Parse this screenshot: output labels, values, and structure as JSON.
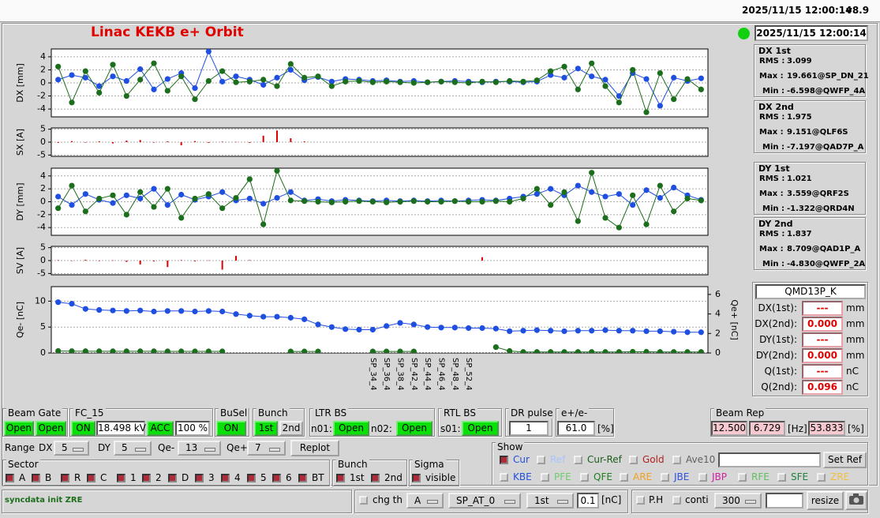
{
  "header": {
    "datetime": "2025/11/15 12:00:14",
    "version": "v8.9"
  },
  "title": "Linac KEKB e+ Orbit",
  "timestamp": "2025/11/15 12:00:14",
  "chart_data": [
    {
      "type": "line",
      "ylabel": "DX [mm]",
      "ylim": [
        -5.2,
        5.2
      ],
      "yticks": [
        4,
        2,
        0,
        -2,
        -4
      ],
      "grid": true,
      "series": [
        {
          "color": "#1f4fe0",
          "values": [
            0.5,
            1.2,
            0.8,
            -0.5,
            1.0,
            0.3,
            2.1,
            -1.0,
            0.6,
            1.5,
            -0.8,
            4.8,
            0.2,
            1.0,
            0.5,
            -0.3,
            0.8,
            2.0,
            0.4,
            0.9,
            0.2,
            0.6,
            0.5,
            0.3,
            0.4,
            0.2,
            0.3,
            0.1,
            0.2,
            0.3,
            0.2,
            0.1,
            0.2,
            0.2,
            0.1,
            0.2,
            1.2,
            0.8,
            2.2,
            1.0,
            0.5,
            -2.0,
            1.5,
            0.6,
            -3.5,
            0.8,
            0.3,
            0.7
          ]
        },
        {
          "color": "#1b6e1b",
          "values": [
            2.5,
            -3.0,
            1.8,
            -1.5,
            2.8,
            -2.0,
            0.5,
            3.0,
            -1.2,
            1.0,
            -2.5,
            0.3,
            1.8,
            0.1,
            0.2,
            0.5,
            -0.5,
            2.9,
            0.8,
            1.0,
            -0.5,
            0.2,
            0.3,
            0.1,
            0.2,
            0.1,
            0,
            0.1,
            0.2,
            0.1,
            0,
            0.2,
            0.1,
            0.3,
            0.2,
            0.4,
            1.8,
            2.5,
            -1.0,
            3.0,
            -0.5,
            -3.0,
            2.0,
            -4.5,
            1.5,
            -2.5,
            0.6,
            -1.0
          ]
        }
      ]
    },
    {
      "type": "bar",
      "ylabel": "SX [A]",
      "ylim": [
        -5.5,
        5.5
      ],
      "yticks": [
        5,
        0,
        -5
      ],
      "grid": true,
      "series": [
        {
          "color": "#e00000",
          "values": [
            -0.3,
            0.4,
            -0.2,
            0.3,
            -0.5,
            0.6,
            0.8,
            -0.2,
            0.3,
            -1.2,
            0.4,
            -0.3,
            0.2,
            0.1,
            -0.3,
            2.5,
            4.5,
            1.5,
            0.3,
            null,
            null,
            null,
            null,
            null,
            null,
            null,
            null,
            null,
            null,
            null,
            null,
            null,
            null,
            null,
            null,
            null,
            null,
            null,
            null,
            null,
            null,
            null,
            null,
            null,
            null,
            null,
            null,
            null
          ]
        }
      ]
    },
    {
      "type": "line",
      "ylabel": "DY [mm]",
      "ylim": [
        -5.2,
        5.2
      ],
      "yticks": [
        4,
        2,
        0,
        -2,
        -4
      ],
      "grid": true,
      "series": [
        {
          "color": "#1f4fe0",
          "values": [
            0.8,
            -0.5,
            1.2,
            0.3,
            -0.2,
            1.0,
            0.5,
            2.0,
            -0.5,
            1.1,
            0.3,
            0.8,
            1.5,
            0.2,
            0.5,
            -0.3,
            0.6,
            1.5,
            0.2,
            0.4,
            0.1,
            0.3,
            0.2,
            0.1,
            0.2,
            0.1,
            0.2,
            0.1,
            0.2,
            0.1,
            0.2,
            0.3,
            0.2,
            0.5,
            0.8,
            1.2,
            2.0,
            1.0,
            2.5,
            1.5,
            0.8,
            1.2,
            -0.5,
            1.8,
            0.6,
            2.2,
            1.0,
            0.3
          ]
        },
        {
          "color": "#1b6e1b",
          "values": [
            -1.0,
            2.5,
            -1.5,
            0.5,
            1.0,
            -2.0,
            1.5,
            -0.8,
            2.0,
            -2.5,
            0.5,
            1.2,
            -1.0,
            0.6,
            3.5,
            -3.5,
            4.8,
            0.2,
            0.1,
            0,
            -0.1,
            0,
            0.1,
            0,
            -0.1,
            0,
            0.1,
            0,
            0,
            0.1,
            0,
            0,
            0.1,
            0,
            0.5,
            2.0,
            -0.5,
            1.5,
            -3.0,
            4.5,
            -2.5,
            -4.0,
            1.0,
            -3.5,
            2.5,
            -1.5,
            0.5,
            0.2
          ]
        }
      ]
    },
    {
      "type": "bar",
      "ylabel": "SV [A]",
      "ylim": [
        -5.5,
        5.5
      ],
      "yticks": [
        5,
        0,
        -5
      ],
      "grid": true,
      "series": [
        {
          "color": "#e00000",
          "values": [
            0.2,
            -0.1,
            0.3,
            -0.2,
            0.1,
            -0.5,
            -1.5,
            -0.3,
            -2.5,
            0.2,
            -0.3,
            0.1,
            -3.5,
            1.8,
            0.2,
            null,
            null,
            null,
            null,
            null,
            null,
            null,
            null,
            null,
            null,
            null,
            null,
            null,
            null,
            null,
            null,
            1.3,
            null,
            null,
            null,
            null,
            null,
            null,
            null,
            null,
            null,
            null,
            null,
            null,
            null,
            null,
            null,
            null
          ]
        }
      ]
    },
    {
      "type": "line",
      "ylabel": "Qe- [nC]",
      "y2label": "Qe+ [nC]",
      "ylim": [
        0,
        12.8
      ],
      "yticks": [
        0,
        5,
        10
      ],
      "y2lim": [
        0,
        6.8
      ],
      "y2ticks": [
        0,
        2,
        4,
        6
      ],
      "grid": true,
      "categories": [
        null,
        null,
        null,
        null,
        null,
        null,
        null,
        null,
        null,
        null,
        null,
        null,
        null,
        null,
        null,
        null,
        null,
        null,
        null,
        null,
        null,
        null,
        null,
        "SP_34_4",
        "SP_36_4",
        "SP_38_4",
        "SP_42_4",
        "SP_44_4",
        "SP_46_4",
        "SP_48_4",
        "SP_52_4",
        null,
        null,
        null,
        null,
        null,
        null,
        null,
        null,
        null,
        null,
        null,
        null,
        null,
        null,
        null,
        null,
        null
      ],
      "series": [
        {
          "color": "#1f4fe0",
          "values": [
            9.8,
            9.5,
            8.5,
            8.3,
            8.2,
            8.1,
            8.2,
            8.0,
            8.1,
            8.1,
            8.0,
            8.1,
            8.0,
            7.5,
            7.2,
            7.0,
            7.0,
            6.8,
            6.5,
            5.5,
            5.0,
            4.6,
            4.5,
            4.5,
            5.2,
            5.8,
            5.5,
            5.0,
            4.9,
            4.9,
            4.8,
            4.8,
            4.7,
            4.2,
            4.3,
            4.4,
            4.3,
            4.2,
            4.3,
            4.3,
            4.4,
            4.3,
            4.3,
            4.2,
            4.2,
            4.1,
            4.0,
            4.0
          ]
        },
        {
          "color": "#1b6e1b",
          "axis": "y2",
          "values": [
            0.2,
            0.18,
            0.18,
            0.17,
            0.17,
            0.17,
            0.17,
            0.17,
            0.16,
            0.16,
            0.16,
            0.16,
            0.16,
            null,
            null,
            null,
            null,
            0.15,
            0.15,
            0.15,
            null,
            null,
            null,
            0.15,
            0.15,
            0.15,
            0.15,
            null,
            null,
            null,
            null,
            null,
            0.6,
            0.2,
            0.1,
            0.1,
            0.1,
            0.1,
            0.1,
            0.1,
            0.1,
            0.1,
            0.12,
            0.12,
            0.1,
            0.1,
            0.1,
            0.1
          ]
        }
      ]
    }
  ],
  "stats": [
    {
      "title": "DX 1st",
      "rows": [
        [
          "RMS :",
          "3.099"
        ],
        [
          "Max :",
          "19.661@SP_DN_21"
        ],
        [
          "Min :",
          "-6.598@QWFP_4A"
        ]
      ]
    },
    {
      "title": "DX 2nd",
      "rows": [
        [
          "RMS :",
          "1.975"
        ],
        [
          "Max :",
          "9.151@QLF6S"
        ],
        [
          "Min :",
          "-7.197@QAD7P_A"
        ]
      ]
    },
    {
      "title": "DY 1st",
      "rows": [
        [
          "RMS :",
          "1.021"
        ],
        [
          "Max :",
          "3.559@QRF2S"
        ],
        [
          "Min :",
          "-1.322@QRD4N"
        ]
      ]
    },
    {
      "title": "DY 2nd",
      "rows": [
        [
          "RMS :",
          "1.837"
        ],
        [
          "Max :",
          "8.709@QAD1P_A"
        ],
        [
          "Min :",
          "-4.830@QWFP_2A"
        ]
      ]
    }
  ],
  "monitor": {
    "name": "QMD13P_K",
    "rows": [
      [
        "DX(1st):",
        "---",
        "mm"
      ],
      [
        "DX(2nd):",
        "0.000",
        "mm"
      ],
      [
        "DY(1st):",
        "---",
        "mm"
      ],
      [
        "DY(2nd):",
        "0.000",
        "mm"
      ],
      [
        "Q(1st):",
        "---",
        "nC"
      ],
      [
        "Q(2nd):",
        "0.096",
        "nC"
      ]
    ]
  },
  "controls": {
    "beam_gate": {
      "label": "Beam Gate",
      "buttons": [
        "Open",
        "Open"
      ]
    },
    "fc": {
      "label": "FC_15",
      "state": "ON",
      "voltage": "18.498 kV",
      "mode": "ACC",
      "percent": "100 %"
    },
    "busel": {
      "label": "BuSel",
      "state": "ON"
    },
    "bunch": {
      "label": "Bunch",
      "buttons": [
        "1st",
        "2nd"
      ]
    },
    "ltr": {
      "label": "LTR BS",
      "items": [
        [
          "n01:",
          "Open"
        ],
        [
          "n02:",
          "Open"
        ]
      ]
    },
    "rtl": {
      "label": "RTL BS",
      "items": [
        [
          "s01:",
          "Open"
        ]
      ]
    },
    "dr": {
      "label": "DR pulse",
      "value": "1"
    },
    "ratio": {
      "label": "e+/e-",
      "value": "61.0",
      "unit": "[%]"
    },
    "rep": {
      "label": "Beam Rep",
      "values": [
        "12.500",
        "6.729"
      ],
      "unit": "[Hz]",
      "percent": "53.833",
      "percent_unit": "[%]"
    },
    "range": {
      "label": "Range",
      "items": [
        [
          "DX",
          "5"
        ],
        [
          "DY",
          "5"
        ],
        [
          "Qe-",
          "13"
        ],
        [
          "Qe+",
          "7"
        ]
      ],
      "button": "Replot"
    },
    "show": {
      "label": "Show",
      "set_ref": "Set Ref",
      "row1": [
        {
          "text": "Cur",
          "color": "#2050e0",
          "checked": true
        },
        {
          "text": "Ref",
          "color": "#a8c4ff",
          "checked": false
        },
        {
          "text": "Cur-Ref",
          "color": "#1b5e1b",
          "checked": false
        },
        {
          "text": "Gold",
          "color": "#b02020",
          "checked": false
        },
        {
          "text": "Ave10",
          "color": "#606060",
          "checked": false
        }
      ],
      "row2": [
        {
          "text": "KBE",
          "color": "#2050e0",
          "checked": false
        },
        {
          "text": "PFE",
          "color": "#6ccc6c",
          "checked": false
        },
        {
          "text": "QFE",
          "color": "#1f7f1f",
          "checked": false
        },
        {
          "text": "ARE",
          "color": "#f0a020",
          "checked": false
        },
        {
          "text": "JBE",
          "color": "#3050e0",
          "checked": false
        },
        {
          "text": "JBP",
          "color": "#d020a0",
          "checked": false
        },
        {
          "text": "RFE",
          "color": "#60c060",
          "checked": false
        },
        {
          "text": "SFE",
          "color": "#1f7f40",
          "checked": false
        },
        {
          "text": "ZRE",
          "color": "#f0c040",
          "checked": false
        }
      ]
    },
    "sector": {
      "label": "Sector",
      "items": [
        "A",
        "B",
        "R",
        "C",
        "1",
        "2",
        "D",
        "3",
        "4",
        "5",
        "6",
        "BT"
      ]
    },
    "bunch2": {
      "label": "Bunch",
      "items": [
        "1st",
        "2nd"
      ]
    },
    "sigma": {
      "label": "Sigma",
      "items": [
        "visible"
      ]
    },
    "status": "syncdata init ZRE",
    "bottom": {
      "chg": "chg th",
      "selects": [
        "A",
        "SP_AT_0",
        "1st"
      ],
      "threshold": "0.1",
      "unit": "[nC]",
      "ph": "P.H",
      "conti": "conti",
      "count": "300",
      "resize": "resize"
    }
  }
}
